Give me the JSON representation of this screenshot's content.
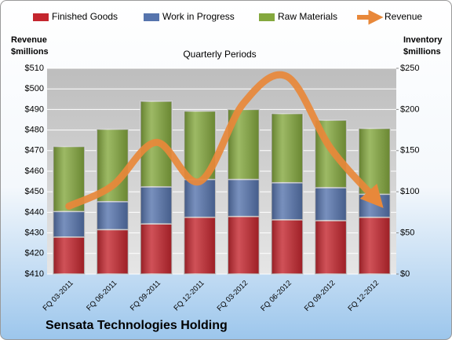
{
  "chart_data": {
    "type": "stacked_bar_line",
    "title": "Sensata Technologies Holding",
    "subtitle": "Quarterly Periods",
    "y_label": [
      "Revenue",
      "$millions"
    ],
    "y2_label": [
      "Inventory",
      "$millions"
    ],
    "categories": [
      "FQ 03-2011",
      "FQ 06-2011",
      "FQ 09-2011",
      "FQ 12-2011",
      "FQ 03-2012",
      "FQ 06-2012",
      "FQ 09-2012",
      "FQ 12-2012"
    ],
    "series": [
      {
        "name": "Finished Goods",
        "color": "#c4262e",
        "axis": "y2",
        "values": [
          45,
          54,
          61,
          69,
          70,
          66,
          65,
          69
        ]
      },
      {
        "name": "Work in Progress",
        "color": "#5674ad",
        "axis": "y2",
        "values": [
          31,
          34,
          45,
          46,
          45,
          45,
          40,
          28
        ]
      },
      {
        "name": "Raw Materials",
        "color": "#84a83e",
        "axis": "y2",
        "values": [
          79,
          88,
          104,
          83,
          85,
          84,
          82,
          80
        ]
      },
      {
        "name": "Revenue",
        "color": "#e8883a",
        "axis": "y",
        "values": [
          443,
          453,
          474,
          455,
          493,
          506,
          471,
          447
        ]
      }
    ],
    "ylim": [
      410,
      510
    ],
    "yticks": [
      {
        "value": 410,
        "label": "$410"
      },
      {
        "value": 420,
        "label": "$420"
      },
      {
        "value": 430,
        "label": "$430"
      },
      {
        "value": 440,
        "label": "$440"
      },
      {
        "value": 450,
        "label": "$450"
      },
      {
        "value": 460,
        "label": "$460"
      },
      {
        "value": 470,
        "label": "$470"
      },
      {
        "value": 480,
        "label": "$480"
      },
      {
        "value": 490,
        "label": "$490"
      },
      {
        "value": 500,
        "label": "$500"
      },
      {
        "value": 510,
        "label": "$510"
      }
    ],
    "y2lim": [
      0,
      250
    ],
    "y2ticks": [
      {
        "value": 0,
        "label": "$0"
      },
      {
        "value": 50,
        "label": "$50"
      },
      {
        "value": 100,
        "label": "$100"
      },
      {
        "value": 150,
        "label": "$150"
      },
      {
        "value": 200,
        "label": "$200"
      },
      {
        "value": 250,
        "label": "$250"
      }
    ],
    "grid": true
  }
}
